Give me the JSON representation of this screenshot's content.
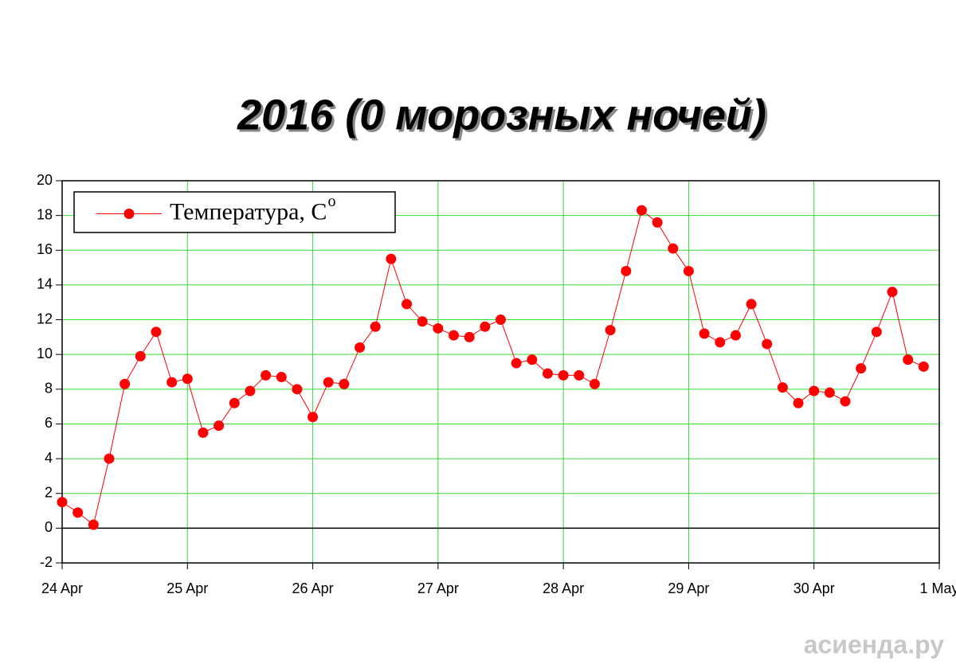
{
  "chart_data": {
    "type": "line",
    "title": "2016 (0 морозных ночей)",
    "x": [
      0,
      0.125,
      0.25,
      0.375,
      0.5,
      0.625,
      0.75,
      0.875,
      1,
      1.125,
      1.25,
      1.375,
      1.5,
      1.625,
      1.75,
      1.875,
      2,
      2.125,
      2.25,
      2.375,
      2.5,
      2.625,
      2.75,
      2.875,
      3,
      3.125,
      3.25,
      3.375,
      3.5,
      3.625,
      3.75,
      3.875,
      4,
      4.125,
      4.25,
      4.375,
      4.5,
      4.625,
      4.75,
      4.875,
      5,
      5.125,
      5.25,
      5.375,
      5.5,
      5.625,
      5.75,
      5.875,
      6,
      6.125,
      6.25,
      6.375,
      6.5,
      6.625,
      6.75,
      6.875
    ],
    "series": [
      {
        "name": "Температура, C",
        "color": "#ff0000",
        "values": [
          1.5,
          0.9,
          0.2,
          4.0,
          8.3,
          9.9,
          11.3,
          8.4,
          8.6,
          5.5,
          5.9,
          7.2,
          7.9,
          8.8,
          8.7,
          8.0,
          6.4,
          8.4,
          8.3,
          10.4,
          11.6,
          15.5,
          12.9,
          11.9,
          11.5,
          11.1,
          11.0,
          11.6,
          12.0,
          9.5,
          9.7,
          8.9,
          8.8,
          8.8,
          8.3,
          11.4,
          14.8,
          18.3,
          17.6,
          16.1,
          14.8,
          11.2,
          10.7,
          11.1,
          12.9,
          10.6,
          8.1,
          7.2,
          7.9,
          7.8,
          7.3,
          9.2,
          11.3,
          13.6,
          9.7,
          9.3
        ]
      }
    ],
    "legend_superscript": "o",
    "xlim": [
      0,
      7
    ],
    "xticks": [
      {
        "value": 0,
        "label": "24 Apr"
      },
      {
        "value": 1,
        "label": "25 Apr"
      },
      {
        "value": 2,
        "label": "26 Apr"
      },
      {
        "value": 3,
        "label": "27 Apr"
      },
      {
        "value": 4,
        "label": "28 Apr"
      },
      {
        "value": 5,
        "label": "29 Apr"
      },
      {
        "value": 6,
        "label": "30 Apr"
      },
      {
        "value": 7,
        "label": "1 May"
      }
    ],
    "ylim": [
      -2,
      20
    ],
    "yticks": [
      -2,
      0,
      2,
      4,
      6,
      8,
      10,
      12,
      14,
      16,
      18,
      20
    ],
    "grid": true,
    "grid_color": "#33dd33",
    "legend": "upper left",
    "watermark": "асиенда.ру"
  }
}
